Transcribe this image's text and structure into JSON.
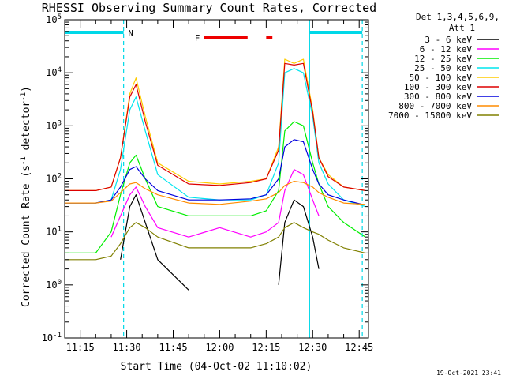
{
  "chart_data": {
    "type": "line",
    "title": "RHESSI Observing Summary Count Rates, Corrected",
    "xlabel": "Start Time (04-Oct-02 11:10:02)",
    "ylabel": "Corrected Count Rate (s",
    "ylabel_sup1": "-1",
    "ylabel_mid": " detector",
    "ylabel_sup2": "-1",
    "ylabel_end": ")",
    "yscale": "log",
    "xlim": [
      "11:10",
      "12:48"
    ],
    "ylim": [
      0.1,
      100000
    ],
    "x_ticks": [
      "11:15",
      "11:30",
      "11:45",
      "12:00",
      "12:15",
      "12:30",
      "12:45"
    ],
    "y_ticks": [
      {
        "base": "10",
        "exp": "-1",
        "value": 0.1
      },
      {
        "base": "10",
        "exp": "0",
        "value": 1
      },
      {
        "base": "10",
        "exp": "1",
        "value": 10
      },
      {
        "base": "10",
        "exp": "2",
        "value": 100
      },
      {
        "base": "10",
        "exp": "3",
        "value": 1000
      },
      {
        "base": "10",
        "exp": "4",
        "value": 10000
      },
      {
        "base": "10",
        "exp": "5",
        "value": 100000
      }
    ],
    "legend_header": [
      "Det 1,3,4,5,6,9,",
      "Att 1"
    ],
    "legend_position": "right",
    "annotation_N": "N",
    "annotation_F": "F",
    "timestamp": "19-Oct-2021 23:41",
    "night_bars": [
      {
        "start": "11:10",
        "end": "11:29"
      },
      {
        "start": "12:29",
        "end": "12:46"
      }
    ],
    "flare_bars": [
      {
        "start": "11:55",
        "end": "12:09"
      },
      {
        "start": "12:15",
        "end": "12:17"
      }
    ],
    "vlines": [
      {
        "time": "11:29",
        "style": "dashed",
        "color": "#00d8e8"
      },
      {
        "time": "12:29",
        "style": "solid",
        "color": "#00d8e8"
      },
      {
        "time": "12:46",
        "style": "dashed",
        "color": "#00d8e8"
      }
    ],
    "x": [
      "11:10",
      "11:20",
      "11:25",
      "11:28",
      "11:31",
      "11:33",
      "11:36",
      "11:40",
      "11:50",
      "12:00",
      "12:10",
      "12:15",
      "12:19",
      "12:21",
      "12:24",
      "12:27",
      "12:30",
      "12:32",
      "12:35",
      "12:40",
      "12:47"
    ],
    "series": [
      {
        "name": "3 - 6 keV",
        "color": "#000000",
        "values": [
          null,
          null,
          null,
          3,
          30,
          50,
          15,
          3,
          0.8,
          null,
          null,
          null,
          1,
          15,
          40,
          30,
          8,
          2,
          null,
          null,
          null
        ]
      },
      {
        "name": "6 - 12 keV",
        "color": "#ff00ff",
        "values": [
          null,
          null,
          8,
          20,
          50,
          70,
          30,
          12,
          8,
          12,
          8,
          10,
          15,
          60,
          150,
          120,
          40,
          20,
          null,
          null,
          null
        ]
      },
      {
        "name": "12 - 25 keV",
        "color": "#00ee00",
        "values": [
          4,
          4,
          10,
          50,
          200,
          280,
          100,
          30,
          20,
          20,
          20,
          25,
          60,
          800,
          1200,
          1000,
          200,
          80,
          30,
          15,
          8
        ]
      },
      {
        "name": "25 - 50 keV",
        "color": "#00e5ee",
        "values": [
          35,
          35,
          40,
          150,
          2000,
          3500,
          800,
          120,
          45,
          40,
          40,
          50,
          200,
          10000,
          12000,
          10000,
          1500,
          200,
          80,
          40,
          30
        ]
      },
      {
        "name": "50 - 100 keV",
        "color": "#ffcc00",
        "values": [
          60,
          60,
          70,
          250,
          4000,
          8000,
          1500,
          200,
          90,
          80,
          90,
          100,
          400,
          18000,
          15000,
          18000,
          2000,
          250,
          120,
          70,
          60
        ]
      },
      {
        "name": "100 - 300 keV",
        "color": "#dd0000",
        "values": [
          60,
          60,
          70,
          250,
          3500,
          6000,
          1200,
          180,
          80,
          75,
          85,
          100,
          350,
          15000,
          14000,
          15000,
          1800,
          250,
          110,
          70,
          60
        ]
      },
      {
        "name": "300 - 800 keV",
        "color": "#0000dd",
        "values": [
          35,
          35,
          40,
          70,
          150,
          170,
          100,
          60,
          40,
          40,
          42,
          50,
          100,
          400,
          550,
          500,
          150,
          80,
          50,
          40,
          32
        ]
      },
      {
        "name": "800 - 7000 keV",
        "color": "#ff8c00",
        "values": [
          35,
          35,
          38,
          55,
          80,
          85,
          65,
          50,
          35,
          33,
          38,
          42,
          55,
          75,
          90,
          85,
          70,
          55,
          45,
          35,
          33
        ]
      },
      {
        "name": "7000 - 15000 keV",
        "color": "#808000",
        "values": [
          3,
          3,
          3.5,
          6,
          12,
          15,
          12,
          8,
          5,
          5,
          5,
          6,
          8,
          12,
          15,
          12,
          10,
          9,
          7,
          5,
          4
        ]
      }
    ]
  }
}
